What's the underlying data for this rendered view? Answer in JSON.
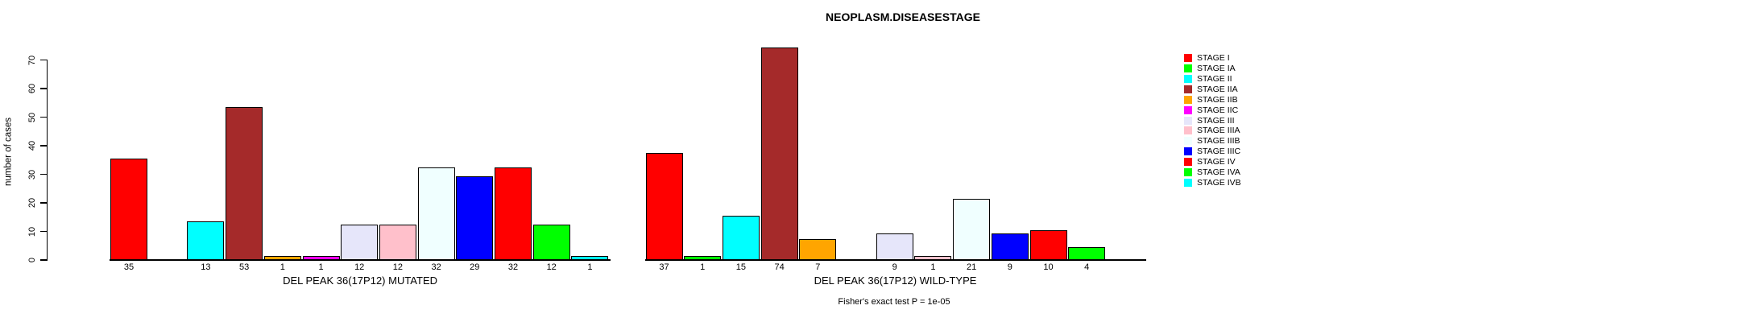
{
  "title": "NEOPLASM.DISEASESTAGE",
  "annotation": "Fisher's exact test P = 1e-05",
  "chart_data": {
    "type": "bar",
    "title": "NEOPLASM.DISEASESTAGE",
    "xlabel": "",
    "ylabel": "number of cases",
    "ylim": [
      0,
      74
    ],
    "yticks": [
      0,
      10,
      20,
      30,
      40,
      50,
      60,
      70
    ],
    "grid": false,
    "legend_position": "right",
    "bar_value_labels_shown": true,
    "categories": [
      "STAGE I",
      "STAGE IA",
      "STAGE II",
      "STAGE IIA",
      "STAGE IIB",
      "STAGE IIC",
      "STAGE III",
      "STAGE IIIA",
      "STAGE IIIB",
      "STAGE IIIC",
      "STAGE IV",
      "STAGE IVA",
      "STAGE IVB"
    ],
    "colors": [
      "#FF0000",
      "#00FF00",
      "#00FFFF",
      "#A52A2A",
      "#FFA500",
      "#FF00FF",
      "#E6E6FA",
      "#FFC0CB",
      "#F0FFFF",
      "#0000FF",
      "#FF0000",
      "#00FF00",
      "#00FFFF"
    ],
    "series": [
      {
        "name": "DEL PEAK 36(17P12) MUTATED",
        "values": [
          35,
          0,
          13,
          53,
          1,
          1,
          12,
          12,
          32,
          29,
          32,
          12,
          1
        ]
      },
      {
        "name": "DEL PEAK 36(17P12) WILD-TYPE",
        "values": [
          37,
          1,
          15,
          74,
          7,
          0,
          9,
          1,
          21,
          9,
          10,
          4,
          0
        ]
      }
    ],
    "annotation": "Fisher's exact test P = 1e-05"
  }
}
